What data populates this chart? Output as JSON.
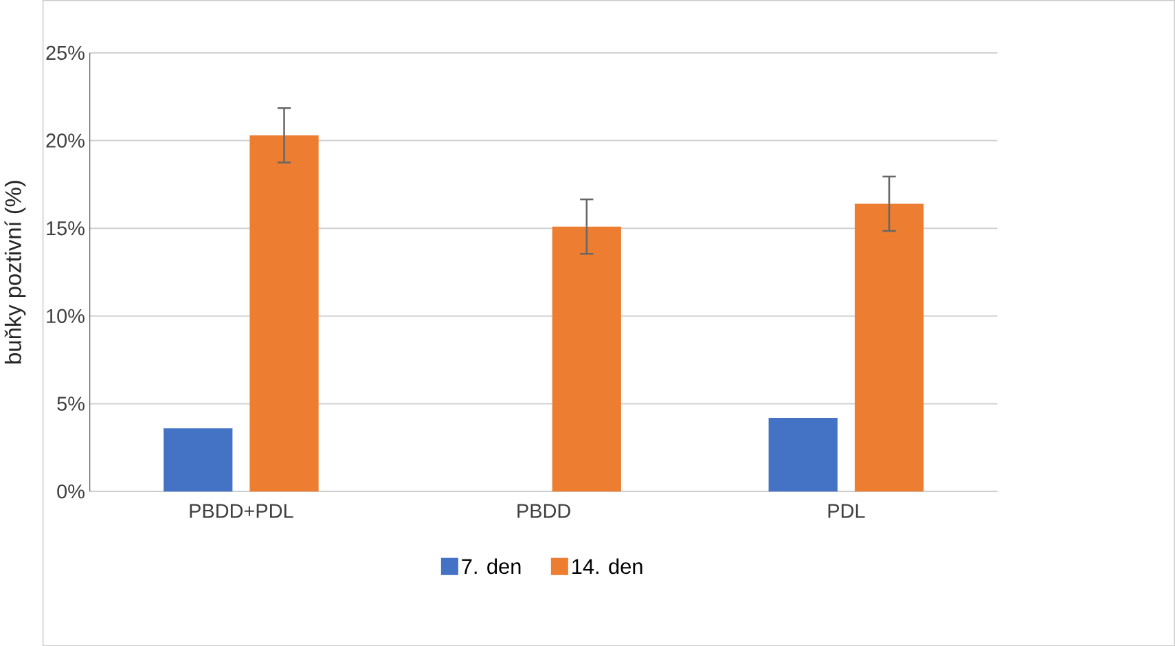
{
  "chart_data": {
    "type": "bar",
    "ylabel": "buňky poztivní (%)",
    "categories": [
      "PBDD+PDL",
      "PBDD",
      "PDL"
    ],
    "series": [
      {
        "name": "7. den",
        "color": "#4472c4",
        "values": [
          3.6,
          null,
          4.2
        ]
      },
      {
        "name": "14. den",
        "color": "#ed7d31",
        "values": [
          20.3,
          15.1,
          16.4
        ],
        "errors": [
          1.55,
          1.55,
          1.55
        ]
      }
    ],
    "ylim": [
      0,
      25
    ],
    "yticks": [
      {
        "value": 0,
        "label": "0%"
      },
      {
        "value": 5,
        "label": "5%"
      },
      {
        "value": 10,
        "label": "10%"
      },
      {
        "value": 15,
        "label": "15%"
      },
      {
        "value": 20,
        "label": "20%"
      },
      {
        "value": 25,
        "label": "25%"
      }
    ],
    "grid": "y",
    "legend": "bottom"
  }
}
